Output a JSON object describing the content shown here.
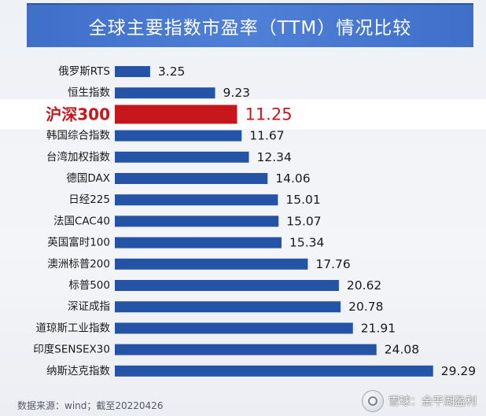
{
  "chart_data": {
    "type": "bar",
    "orientation": "horizontal",
    "title": "全球主要指数市盈率（TTM）情况比较",
    "categories": [
      "俄罗斯RTS",
      "恒生指数",
      "沪深300",
      "韩国综合指数",
      "台湾加权指数",
      "德国DAX",
      "日经225",
      "法国CAC40",
      "英国富时100",
      "澳洲标普200",
      "标普500",
      "深证成指",
      "道琼斯工业指数",
      "印度SENSEX30",
      "纳斯达克指数"
    ],
    "values": [
      3.25,
      9.23,
      11.25,
      11.67,
      12.34,
      14.06,
      15.01,
      15.07,
      15.34,
      17.76,
      20.62,
      20.78,
      21.91,
      24.08,
      29.29
    ],
    "value_labels": [
      "3.25",
      "9.23",
      "11.25",
      "11.67",
      "12.34",
      "14.06",
      "15.01",
      "15.07",
      "15.34",
      "17.76",
      "20.62",
      "20.78",
      "21.91",
      "24.08",
      "29.29"
    ],
    "highlight_index": 2,
    "xlim": [
      0,
      33
    ],
    "grid": false,
    "legend": "none",
    "colors": {
      "bar": "#2553a6",
      "highlight_bar": "#c8161d",
      "highlight_label": "#c8161d",
      "label": "#1a1a1a"
    }
  },
  "footer": {
    "source": "数据来源：wind；截至20220426",
    "watermark": "雪球：金平湖盈利"
  }
}
